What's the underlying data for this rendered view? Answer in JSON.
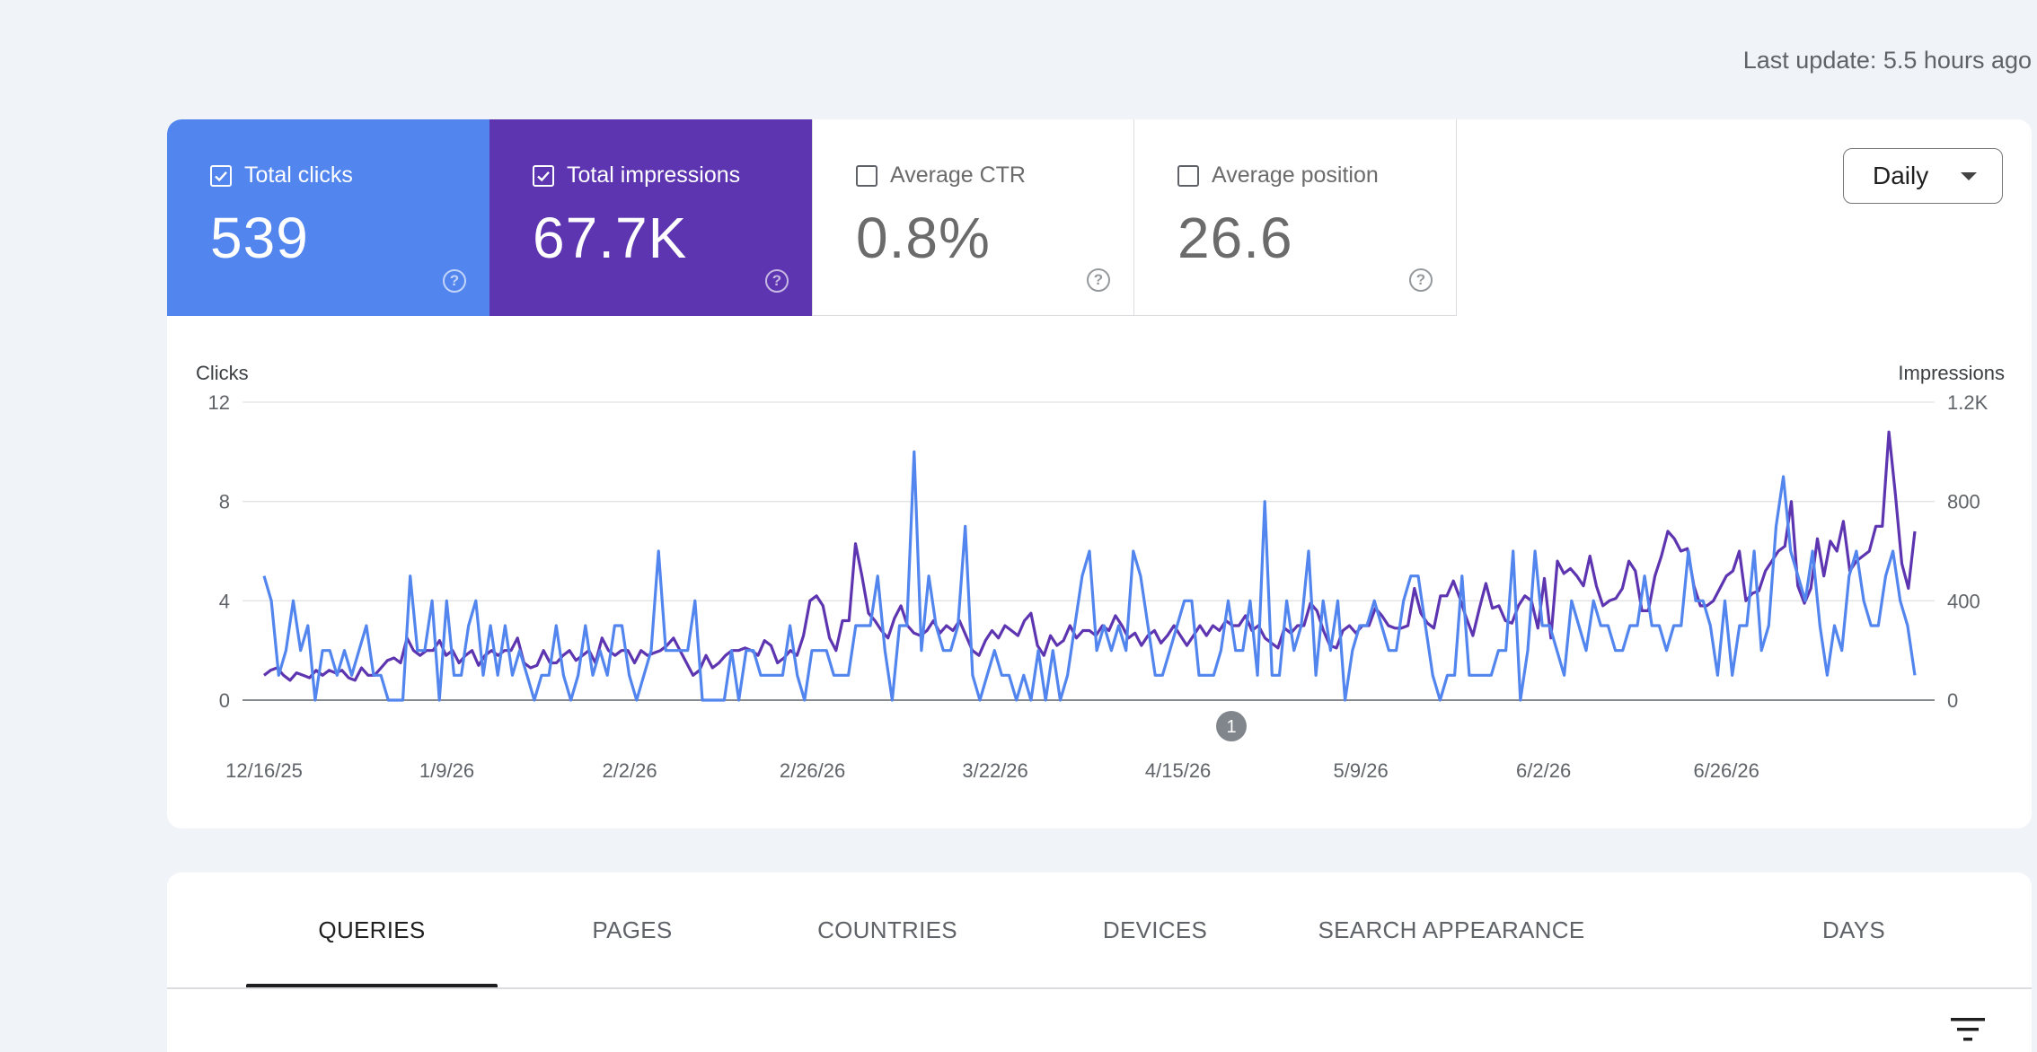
{
  "last_update": "Last update: 5.5 hours ago",
  "metrics": [
    {
      "label": "Total clicks",
      "value": "539",
      "checked": true
    },
    {
      "label": "Total impressions",
      "value": "67.7K",
      "checked": true
    },
    {
      "label": "Average CTR",
      "value": "0.8%",
      "checked": false
    },
    {
      "label": "Average position",
      "value": "26.6",
      "checked": false
    }
  ],
  "help_glyph": "?",
  "granularity": "Daily",
  "colors": {
    "clicks": "#5285ed",
    "impressions": "#5e35b1"
  },
  "chart_data": {
    "type": "line",
    "left_axis_label": "Clicks",
    "right_axis_label": "Impressions",
    "left_ticks": [
      "12",
      "8",
      "4",
      "0"
    ],
    "right_ticks": [
      "1.2K",
      "800",
      "400",
      "0"
    ],
    "left_ylim": [
      0,
      12
    ],
    "right_ylim": [
      0,
      1200
    ],
    "x_tick_labels": [
      "12/16/25",
      "1/9/26",
      "2/2/26",
      "2/26/26",
      "3/22/26",
      "4/15/26",
      "5/9/26",
      "6/2/26",
      "6/26/26"
    ],
    "annotation": "1",
    "series": [
      {
        "name": "Total clicks",
        "axis": "left",
        "values": [
          5,
          4,
          1,
          2,
          4,
          2,
          3,
          0,
          2,
          2,
          1,
          2,
          1,
          2,
          3,
          1,
          1,
          0,
          0,
          0,
          5,
          2,
          2,
          4,
          0,
          4,
          1,
          1,
          3,
          4,
          1,
          3,
          1,
          3,
          1,
          2,
          1,
          0,
          1,
          1,
          3,
          1,
          0,
          1,
          3,
          1,
          2,
          1,
          3,
          3,
          1,
          0,
          1,
          2,
          6,
          2,
          2,
          2,
          2,
          4,
          0,
          0,
          0,
          0,
          2,
          0,
          2,
          2,
          1,
          1,
          1,
          1,
          3,
          1,
          0,
          2,
          2,
          2,
          1,
          1,
          1,
          3,
          3,
          3,
          5,
          2,
          0,
          3,
          3,
          10,
          2,
          5,
          3,
          2,
          2,
          3,
          7,
          1,
          0,
          1,
          2,
          1,
          1,
          0,
          1,
          0,
          2,
          0,
          2,
          0,
          1,
          3,
          5,
          6,
          2,
          3,
          2,
          3,
          2,
          6,
          5,
          3,
          1,
          1,
          2,
          3,
          4,
          4,
          1,
          1,
          1,
          2,
          4,
          2,
          2,
          4,
          1,
          8,
          1,
          1,
          4,
          2,
          3,
          6,
          1,
          4,
          2,
          4,
          0,
          2,
          3,
          3,
          4,
          3,
          2,
          2,
          4,
          5,
          5,
          3,
          1,
          0,
          1,
          1,
          5,
          1,
          1,
          1,
          1,
          2,
          2,
          6,
          0,
          2,
          6,
          3,
          3,
          2,
          1,
          4,
          3,
          2,
          4,
          3,
          3,
          2,
          2,
          3,
          3,
          5,
          3,
          3,
          2,
          3,
          3,
          6,
          4,
          4,
          3,
          1,
          4,
          1,
          3,
          3,
          6,
          2,
          3,
          7,
          9,
          6,
          5,
          4,
          6,
          3,
          1,
          3,
          2,
          5,
          6,
          4,
          3,
          3,
          5,
          6,
          4,
          3,
          1
        ]
      },
      {
        "name": "Total impressions",
        "axis": "right",
        "values": [
          100,
          120,
          130,
          100,
          80,
          110,
          100,
          90,
          120,
          100,
          120,
          110,
          120,
          90,
          80,
          130,
          100,
          100,
          130,
          160,
          170,
          150,
          250,
          200,
          180,
          200,
          200,
          240,
          180,
          200,
          150,
          180,
          200,
          140,
          180,
          200,
          180,
          200,
          200,
          250,
          150,
          130,
          140,
          200,
          150,
          150,
          180,
          200,
          160,
          180,
          200,
          150,
          250,
          200,
          180,
          200,
          200,
          150,
          200,
          180,
          190,
          200,
          220,
          250,
          200,
          150,
          100,
          120,
          180,
          130,
          150,
          180,
          200,
          200,
          210,
          200,
          180,
          240,
          220,
          150,
          170,
          200,
          180,
          260,
          400,
          420,
          380,
          250,
          200,
          320,
          320,
          630,
          500,
          350,
          320,
          280,
          250,
          330,
          380,
          300,
          270,
          260,
          280,
          320,
          270,
          300,
          280,
          320,
          260,
          200,
          180,
          240,
          280,
          250,
          300,
          280,
          260,
          320,
          350,
          220,
          180,
          260,
          220,
          240,
          300,
          250,
          280,
          280,
          260,
          300,
          280,
          340,
          300,
          250,
          270,
          220,
          260,
          280,
          230,
          260,
          300,
          260,
          220,
          260,
          300,
          260,
          300,
          280,
          320,
          300,
          300,
          340,
          280,
          300,
          250,
          230,
          210,
          290,
          270,
          300,
          300,
          390,
          360,
          280,
          220,
          210,
          280,
          300,
          270,
          300,
          300,
          370,
          340,
          300,
          290,
          290,
          300,
          450,
          350,
          310,
          290,
          420,
          420,
          480,
          410,
          330,
          260,
          370,
          470,
          370,
          380,
          320,
          310,
          380,
          420,
          400,
          290,
          490,
          250,
          560,
          510,
          530,
          500,
          460,
          580,
          460,
          380,
          400,
          410,
          450,
          560,
          520,
          360,
          360,
          500,
          580,
          680,
          650,
          600,
          610,
          460,
          380,
          380,
          400,
          450,
          500,
          520,
          600,
          400,
          430,
          440,
          520,
          560,
          600,
          620,
          800,
          460,
          390,
          450,
          650,
          500,
          640,
          600,
          720,
          520,
          560,
          580,
          600,
          700,
          700,
          1080,
          830,
          550,
          450,
          680
        ]
      }
    ]
  },
  "tabs": [
    {
      "label": "QUERIES",
      "active": true
    },
    {
      "label": "PAGES",
      "active": false
    },
    {
      "label": "COUNTRIES",
      "active": false
    },
    {
      "label": "DEVICES",
      "active": false
    },
    {
      "label": "SEARCH APPEARANCE",
      "active": false
    },
    {
      "label": "DAYS",
      "active": false
    }
  ]
}
